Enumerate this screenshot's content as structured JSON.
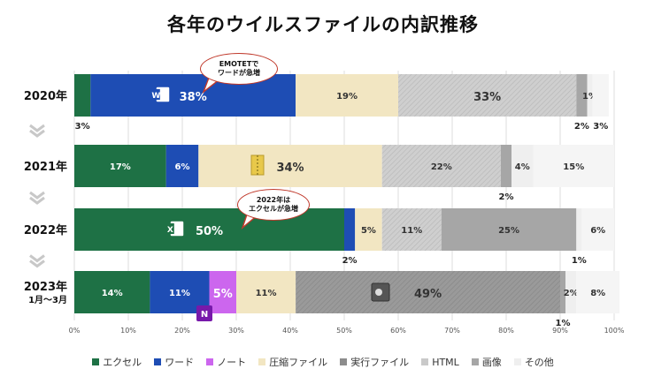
{
  "title": "各年のウイルスファイルの内訳推移",
  "chart_data": {
    "type": "bar",
    "orientation": "horizontal",
    "stacked": true,
    "categories": [
      "2020年",
      "2021年",
      "2022年",
      "2023年\n1月～3月"
    ],
    "xlim": [
      0,
      100
    ],
    "xticks": [
      "0%",
      "10%",
      "20%",
      "30%",
      "40%",
      "50%",
      "60%",
      "70%",
      "80%",
      "90%",
      "100%"
    ],
    "grid": true,
    "legend_position": "bottom",
    "series": [
      {
        "name": "エクセル",
        "color": "#1e7145",
        "values": [
          3,
          17,
          50,
          14
        ],
        "labels": [
          "3%",
          "17%",
          "50%",
          "14%"
        ]
      },
      {
        "name": "ワード",
        "color": "#1e4db4",
        "values": [
          38,
          6,
          2,
          11
        ],
        "labels": [
          "38%",
          "6%",
          "2%",
          "11%"
        ]
      },
      {
        "name": "ノート",
        "color": "#cc66ee",
        "values": [
          0,
          0,
          0,
          5
        ],
        "labels": [
          "",
          "",
          "",
          "5%"
        ]
      },
      {
        "name": "圧縮ファイル",
        "color": "#f2e6c2",
        "values": [
          19,
          34,
          5,
          11
        ],
        "labels": [
          "19%",
          "34%",
          "5%",
          "11%"
        ]
      },
      {
        "name": "実行ファイル",
        "color": "#8c8c8c",
        "values": [
          0,
          0,
          0,
          49
        ],
        "labels": [
          "",
          "",
          "",
          "49%"
        ]
      },
      {
        "name": "HTML",
        "color": "#c9c9c9",
        "values": [
          33,
          22,
          11,
          0
        ],
        "labels": [
          "33%",
          "22%",
          "11%",
          ""
        ]
      },
      {
        "name": "画像",
        "color": "#a6a6a6",
        "values": [
          2,
          2,
          25,
          1
        ],
        "labels": [
          "2%",
          "2%",
          "25%",
          "1%"
        ]
      },
      {
        "name": "その他",
        "color": "#efefef",
        "values": [
          1,
          4,
          1,
          2
        ],
        "labels": [
          "1%",
          "4%",
          "1%",
          "2%"
        ]
      },
      {
        "name": "",
        "color": "#f5f5f5",
        "values": [
          3,
          15,
          6,
          8
        ],
        "labels": [
          "3%",
          "15%",
          "6%",
          "8%"
        ]
      }
    ]
  },
  "callouts": [
    {
      "text": "EMOTETで\nワードが急増"
    },
    {
      "text": "2022年は\nエクセルが急増"
    }
  ],
  "icons": [
    "word-icon",
    "archive-icon",
    "excel-icon",
    "executable-icon",
    "onenote-icon",
    "chevron-down-icon"
  ]
}
